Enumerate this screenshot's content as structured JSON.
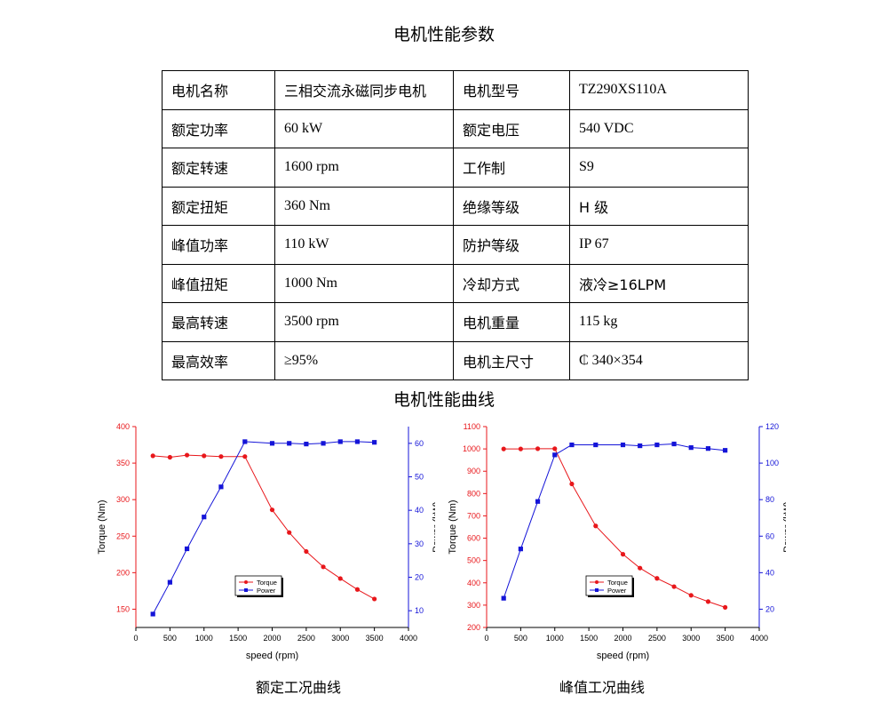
{
  "page_title": "电机性能参数",
  "params_table": {
    "rows": [
      [
        "电机名称",
        "三相交流永磁同步电机",
        "电机型号",
        "TZ290XS110A"
      ],
      [
        "额定功率",
        "60 kW",
        "额定电压",
        "540 VDC"
      ],
      [
        "额定转速",
        "1600 rpm",
        "工作制",
        "S9"
      ],
      [
        "额定扭矩",
        "360 Nm",
        "绝缘等级",
        "H  级"
      ],
      [
        "峰值功率",
        "110 kW",
        "防护等级",
        "IP 67"
      ],
      [
        "峰值扭矩",
        "1000 Nm",
        "冷却方式",
        "液冷≥16LPM"
      ],
      [
        "最高转速",
        "3500 rpm",
        "电机重量",
        "115 kg"
      ],
      [
        "最高效率",
        "≥95%",
        "电机主尺寸",
        "₵ 340×354"
      ]
    ]
  },
  "curves_title": "电机性能曲线",
  "chart_data": [
    {
      "type": "line",
      "caption": "额定工况曲线",
      "xlabel": "speed (rpm)",
      "ylabel_left": "Torque (Nm)",
      "ylabel_right": "Power (kW)",
      "xlim": [
        0,
        4000
      ],
      "xticks": [
        0,
        500,
        1000,
        1500,
        2000,
        2500,
        3000,
        3500,
        4000
      ],
      "ylim_left": [
        125,
        400
      ],
      "yticks_left": [
        150,
        200,
        250,
        300,
        350,
        400
      ],
      "ylim_right": [
        5,
        65
      ],
      "yticks_right": [
        10,
        20,
        30,
        40,
        50,
        60
      ],
      "legend_position": "center-bottom",
      "x": [
        250,
        500,
        750,
        1000,
        1250,
        1600,
        2000,
        2250,
        2500,
        2750,
        3000,
        3250,
        3500
      ],
      "series": [
        {
          "name": "Torque",
          "axis": "left",
          "color": "#e8171b",
          "marker": "circle",
          "values": [
            360,
            358,
            361,
            360,
            359,
            359,
            286,
            255,
            229,
            208,
            192,
            177,
            164
          ]
        },
        {
          "name": "Power",
          "axis": "right",
          "color": "#1414d8",
          "marker": "square",
          "values": [
            9,
            18.5,
            28.5,
            38,
            47,
            60.5,
            60,
            60,
            59.8,
            60,
            60.5,
            60.5,
            60.3
          ]
        }
      ]
    },
    {
      "type": "line",
      "caption": "峰值工况曲线",
      "xlabel": "speed (rpm)",
      "ylabel_left": "Torque (Nm)",
      "ylabel_right": "Power (kW)",
      "xlim": [
        0,
        4000
      ],
      "xticks": [
        0,
        500,
        1000,
        1500,
        2000,
        2500,
        3000,
        3500,
        4000
      ],
      "ylim_left": [
        200,
        1100
      ],
      "yticks_left": [
        200,
        300,
        400,
        500,
        600,
        700,
        800,
        900,
        1000,
        1100
      ],
      "ylim_right": [
        10,
        120
      ],
      "yticks_right": [
        20,
        40,
        60,
        80,
        100,
        120
      ],
      "legend_position": "center-bottom",
      "x": [
        250,
        500,
        750,
        1000,
        1250,
        1600,
        2000,
        2250,
        2500,
        2750,
        3000,
        3250,
        3500
      ],
      "series": [
        {
          "name": "Torque",
          "axis": "left",
          "color": "#e8171b",
          "marker": "circle",
          "values": [
            1000,
            1000,
            1001,
            1001,
            843,
            655,
            528,
            466,
            420,
            383,
            344,
            316,
            290
          ]
        },
        {
          "name": "Power",
          "axis": "right",
          "color": "#1414d8",
          "marker": "square",
          "values": [
            26,
            53,
            79,
            104.5,
            110,
            110,
            110,
            109.5,
            110,
            110.5,
            108.5,
            108,
            107
          ]
        }
      ]
    }
  ]
}
